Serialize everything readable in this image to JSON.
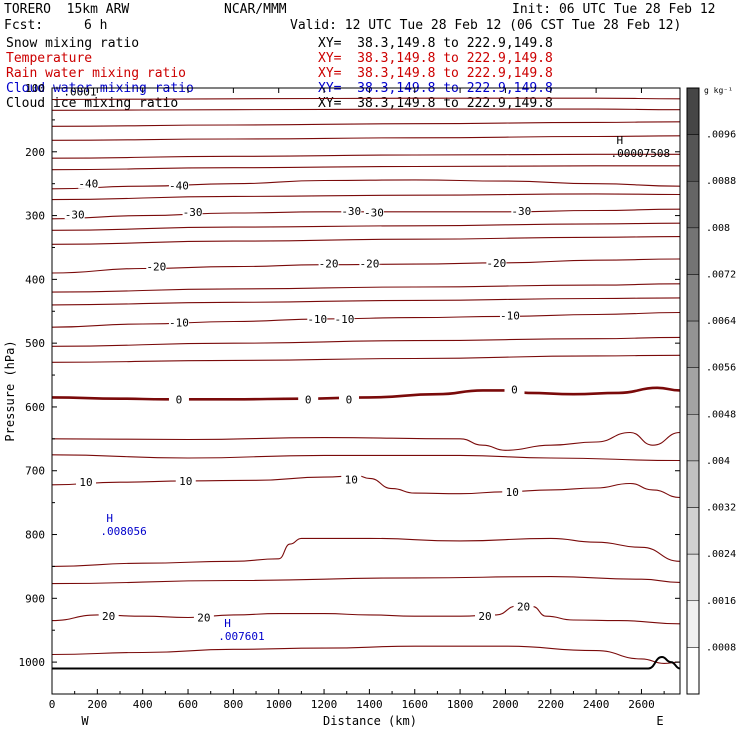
{
  "header": {
    "model": "TORERO  15km ARW",
    "center": "NCAR/MMM",
    "init": "Init: 06 UTC Tue 28 Feb 12",
    "fcst_label": "Fcst:",
    "fcst_value": "6 h",
    "valid": "Valid: 12 UTC Tue 28 Feb 12 (06 CST Tue 28 Feb 12)"
  },
  "fields": [
    {
      "name": "Snow mixing ratio",
      "xy": "XY=  38.3,149.8 to 222.9,149.8",
      "color": "#000000"
    },
    {
      "name": "Temperature",
      "xy": "XY=  38.3,149.8 to 222.9,149.8",
      "color": "#cc0000"
    },
    {
      "name": "Rain water mixing ratio",
      "xy": "XY=  38.3,149.8 to 222.9,149.8",
      "color": "#cc0000"
    },
    {
      "name": "Cloud water mixing ratio",
      "xy": "XY=  38.3,149.8 to 222.9,149.8",
      "color": "#0000cc"
    },
    {
      "name": "Cloud ice mixing ratio",
      "xy": "XY=  38.3,149.8 to 222.9,149.8",
      "color": "#000000"
    }
  ],
  "chart_data": {
    "type": "cross-section contour",
    "xlabel": "Distance (km)",
    "ylabel": "Pressure (hPa)",
    "xlim": [
      0,
      2770
    ],
    "ylim": [
      1050,
      100
    ],
    "x_ticks": [
      "0",
      "200",
      "400",
      "600",
      "800",
      "1000",
      "1200",
      "1400",
      "1600",
      "1800",
      "2000",
      "2200",
      "2400",
      "2600"
    ],
    "y_ticks": [
      "100",
      "200",
      "300",
      "400",
      "500",
      "600",
      "700",
      "800",
      "900",
      "1000"
    ],
    "y_tick_values": [
      100,
      200,
      300,
      400,
      500,
      600,
      700,
      800,
      900,
      1000
    ],
    "y_scale": "linear in pressure",
    "west_label": "W",
    "east_label": "E",
    "colorbar": {
      "unit": "g kg⁻¹",
      "labels": [
        ".0096",
        ".0088",
        ".008",
        ".0072",
        ".0064",
        ".0056",
        ".0048",
        ".004",
        ".0032",
        ".0024",
        ".0016",
        ".0008"
      ],
      "values": [
        0.0096,
        0.0088,
        0.008,
        0.0072,
        0.0064,
        0.0056,
        0.0048,
        0.004,
        0.0032,
        0.0024,
        0.0016,
        0.0008
      ]
    },
    "temperature_color": "#7a0a0a",
    "temperature_contours_degC": [
      {
        "label": "-40",
        "label_positions": [
          [
            160,
            250
          ],
          [
            560,
            253
          ]
        ],
        "points": [
          [
            0,
            258
          ],
          [
            400,
            254
          ],
          [
            800,
            250
          ],
          [
            1200,
            245
          ],
          [
            1600,
            244
          ],
          [
            2000,
            246
          ],
          [
            2400,
            250
          ],
          [
            2770,
            254
          ]
        ]
      },
      {
        "label": "-30",
        "label_positions": [
          [
            100,
            298
          ],
          [
            620,
            294
          ],
          [
            1320,
            293
          ],
          [
            1420,
            295
          ],
          [
            2070,
            293
          ]
        ],
        "points": [
          [
            0,
            305
          ],
          [
            400,
            300
          ],
          [
            800,
            296
          ],
          [
            1200,
            294
          ],
          [
            1600,
            294
          ],
          [
            2000,
            294
          ],
          [
            2400,
            292
          ],
          [
            2770,
            290
          ]
        ]
      },
      {
        "label": "-20",
        "label_positions": [
          [
            460,
            380
          ],
          [
            1220,
            375
          ],
          [
            1400,
            375
          ],
          [
            1960,
            374
          ]
        ],
        "points": [
          [
            0,
            390
          ],
          [
            400,
            383
          ],
          [
            800,
            380
          ],
          [
            1200,
            377
          ],
          [
            1600,
            376
          ],
          [
            2000,
            374
          ],
          [
            2400,
            370
          ],
          [
            2770,
            368
          ]
        ]
      },
      {
        "label": "-10",
        "label_positions": [
          [
            560,
            468
          ],
          [
            1170,
            462
          ],
          [
            1290,
            462
          ],
          [
            2020,
            457
          ]
        ],
        "points": [
          [
            0,
            475
          ],
          [
            400,
            470
          ],
          [
            800,
            466
          ],
          [
            1200,
            462
          ],
          [
            1600,
            460
          ],
          [
            2000,
            458
          ],
          [
            2400,
            455
          ],
          [
            2770,
            452
          ]
        ]
      },
      {
        "label": "0",
        "label_positions": [
          [
            560,
            588
          ],
          [
            1130,
            588
          ],
          [
            1310,
            588
          ],
          [
            2040,
            573
          ]
        ],
        "thick": true,
        "points": [
          [
            0,
            585
          ],
          [
            300,
            587
          ],
          [
            500,
            588
          ],
          [
            800,
            588
          ],
          [
            1100,
            587
          ],
          [
            1400,
            585
          ],
          [
            1700,
            580
          ],
          [
            1900,
            574
          ],
          [
            2000,
            574
          ],
          [
            2100,
            578
          ],
          [
            2300,
            580
          ],
          [
            2500,
            578
          ],
          [
            2670,
            570
          ],
          [
            2770,
            574
          ]
        ]
      },
      {
        "label": "10",
        "label_positions": [
          [
            150,
            718
          ],
          [
            590,
            716
          ],
          [
            1320,
            714
          ],
          [
            2030,
            733
          ]
        ],
        "points": [
          [
            0,
            722
          ],
          [
            300,
            718
          ],
          [
            600,
            716
          ],
          [
            900,
            715
          ],
          [
            1200,
            710
          ],
          [
            1350,
            708
          ],
          [
            1400,
            712
          ],
          [
            1500,
            728
          ],
          [
            1600,
            735
          ],
          [
            1800,
            736
          ],
          [
            2000,
            733
          ],
          [
            2200,
            730
          ],
          [
            2400,
            727
          ],
          [
            2550,
            720
          ],
          [
            2650,
            730
          ],
          [
            2770,
            742
          ]
        ]
      },
      {
        "label": "20",
        "label_positions": [
          [
            250,
            928
          ],
          [
            670,
            930
          ],
          [
            1910,
            928
          ],
          [
            2080,
            913
          ]
        ],
        "points": [
          [
            0,
            935
          ],
          [
            200,
            926
          ],
          [
            400,
            928
          ],
          [
            600,
            930
          ],
          [
            800,
            926
          ],
          [
            1000,
            924
          ],
          [
            1200,
            924
          ],
          [
            1400,
            926
          ],
          [
            1600,
            928
          ],
          [
            1800,
            928
          ],
          [
            1960,
            926
          ],
          [
            2050,
            912
          ],
          [
            2120,
            913
          ],
          [
            2180,
            928
          ],
          [
            2300,
            934
          ],
          [
            2500,
            935
          ],
          [
            2770,
            940
          ]
        ]
      }
    ],
    "extra_isotherms_no_label": [
      [
        [
          0,
          118
        ],
        [
          800,
          117
        ],
        [
          1600,
          116
        ],
        [
          2400,
          116
        ],
        [
          2770,
          117
        ]
      ],
      [
        [
          0,
          135
        ],
        [
          800,
          134
        ],
        [
          1600,
          133
        ],
        [
          2400,
          133
        ],
        [
          2770,
          134
        ]
      ],
      [
        [
          0,
          160
        ],
        [
          800,
          158
        ],
        [
          1600,
          156
        ],
        [
          2400,
          154
        ],
        [
          2770,
          153
        ]
      ],
      [
        [
          0,
          182
        ],
        [
          800,
          180
        ],
        [
          1600,
          178
        ],
        [
          2400,
          176
        ],
        [
          2770,
          175
        ]
      ],
      [
        [
          0,
          210
        ],
        [
          800,
          207
        ],
        [
          1600,
          205
        ],
        [
          2400,
          204
        ],
        [
          2770,
          204
        ]
      ],
      [
        [
          0,
          228
        ],
        [
          800,
          225
        ],
        [
          1600,
          223
        ],
        [
          2400,
          222
        ],
        [
          2770,
          222
        ]
      ],
      [
        [
          0,
          275
        ],
        [
          800,
          270
        ],
        [
          1600,
          268
        ],
        [
          2400,
          266
        ],
        [
          2770,
          267
        ]
      ],
      [
        [
          0,
          323
        ],
        [
          800,
          318
        ],
        [
          1600,
          316
        ],
        [
          2400,
          313
        ],
        [
          2770,
          312
        ]
      ],
      [
        [
          0,
          345
        ],
        [
          800,
          340
        ],
        [
          1600,
          337
        ],
        [
          2400,
          334
        ],
        [
          2770,
          333
        ]
      ],
      [
        [
          0,
          420
        ],
        [
          800,
          415
        ],
        [
          1600,
          412
        ],
        [
          2400,
          409
        ],
        [
          2770,
          407
        ]
      ],
      [
        [
          0,
          440
        ],
        [
          800,
          436
        ],
        [
          1600,
          433
        ],
        [
          2400,
          430
        ],
        [
          2770,
          429
        ]
      ],
      [
        [
          0,
          505
        ],
        [
          800,
          500
        ],
        [
          1600,
          496
        ],
        [
          2400,
          493
        ],
        [
          2770,
          491
        ]
      ],
      [
        [
          0,
          530
        ],
        [
          800,
          527
        ],
        [
          1600,
          524
        ],
        [
          2400,
          520
        ],
        [
          2770,
          519
        ]
      ],
      [
        [
          0,
          650
        ],
        [
          600,
          651
        ],
        [
          1200,
          648
        ],
        [
          1800,
          650
        ],
        [
          1900,
          660
        ],
        [
          2000,
          668
        ],
        [
          2200,
          660
        ],
        [
          2400,
          655
        ],
        [
          2550,
          640
        ],
        [
          2650,
          660
        ],
        [
          2770,
          640
        ]
      ],
      [
        [
          0,
          675
        ],
        [
          600,
          680
        ],
        [
          1200,
          676
        ],
        [
          1800,
          676
        ],
        [
          2200,
          680
        ],
        [
          2770,
          684
        ]
      ],
      [
        [
          0,
          850
        ],
        [
          400,
          845
        ],
        [
          800,
          842
        ],
        [
          1000,
          838
        ],
        [
          1050,
          815
        ],
        [
          1100,
          806
        ],
        [
          1400,
          806
        ],
        [
          1800,
          810
        ],
        [
          2200,
          806
        ],
        [
          2400,
          812
        ],
        [
          2600,
          820
        ],
        [
          2770,
          842
        ]
      ],
      [
        [
          0,
          877
        ],
        [
          800,
          872
        ],
        [
          1600,
          868
        ],
        [
          2200,
          866
        ],
        [
          2600,
          870
        ],
        [
          2770,
          875
        ]
      ],
      [
        [
          0,
          988
        ],
        [
          400,
          985
        ],
        [
          800,
          980
        ],
        [
          1200,
          978
        ],
        [
          1600,
          975
        ],
        [
          2000,
          975
        ],
        [
          2400,
          982
        ],
        [
          2600,
          995
        ],
        [
          2700,
          1002
        ],
        [
          2770,
          1000
        ]
      ]
    ],
    "surface": [
      [
        0,
        1010
      ],
      [
        800,
        1010
      ],
      [
        1600,
        1010
      ],
      [
        2400,
        1010
      ],
      [
        2630,
        1010
      ],
      [
        2690,
        992
      ],
      [
        2730,
        1000
      ],
      [
        2770,
        1010
      ]
    ],
    "annotations": [
      {
        "text": "H",
        "value": ".00007508",
        "x": 2490,
        "y": 188,
        "color": "#000000"
      },
      {
        "text": "H",
        "value": ".008056",
        "x": 240,
        "y": 780,
        "color": "#0000cc"
      },
      {
        "text": "H",
        "value": ".007601",
        "x": 760,
        "y": 945,
        "color": "#0000cc"
      },
      {
        "text": ".0001",
        "value": "",
        "x": 50,
        "y": 112,
        "color": "#000000"
      }
    ]
  }
}
